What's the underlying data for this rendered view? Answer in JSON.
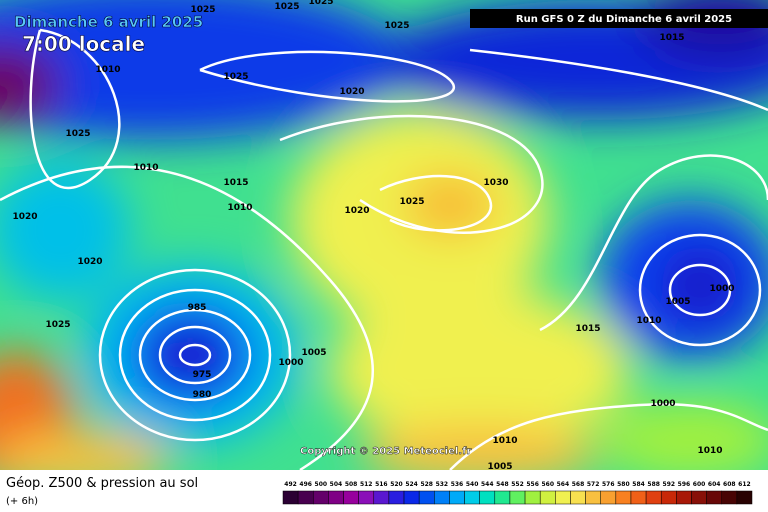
{
  "header": {
    "date": "Dimanche 6 avril 2025",
    "time": "7:00 locale",
    "run": "Run GFS 0 Z du Dimanche 6 avril 2025"
  },
  "copyright": "Copyright © 2025 Meteociel.fr",
  "legend": {
    "title": "Géop. Z500 & pression au sol",
    "step": "(+ 6h)",
    "levels": [
      492,
      496,
      500,
      504,
      508,
      512,
      516,
      520,
      524,
      528,
      532,
      536,
      540,
      544,
      548,
      552,
      556,
      560,
      564,
      568,
      572,
      576,
      580,
      584,
      588,
      592,
      596,
      600,
      604,
      608,
      612
    ],
    "colors": [
      "#2b0033",
      "#48004f",
      "#64006a",
      "#7f0085",
      "#97009d",
      "#8a0fb8",
      "#5a17d0",
      "#2a1ee0",
      "#0a28e8",
      "#0050f0",
      "#0080f8",
      "#00aaf8",
      "#00cce8",
      "#00e0c0",
      "#20e890",
      "#60f060",
      "#a0f040",
      "#d0f040",
      "#f0f050",
      "#f8e050",
      "#f8c040",
      "#f8a030",
      "#f88020",
      "#f06018",
      "#e04010",
      "#c82808",
      "#a81808",
      "#881008",
      "#680808",
      "#480404",
      "#280202"
    ]
  },
  "isobars": [
    1025,
    1025,
    1025,
    1025,
    1015,
    1010,
    1025,
    1020,
    1025,
    1010,
    1015,
    1010,
    1020,
    1025,
    1030,
    1020,
    1020,
    985,
    1005,
    1000,
    1025,
    1015,
    1010,
    1005,
    1000,
    975,
    980,
    1010,
    1005,
    1010,
    1000
  ]
}
